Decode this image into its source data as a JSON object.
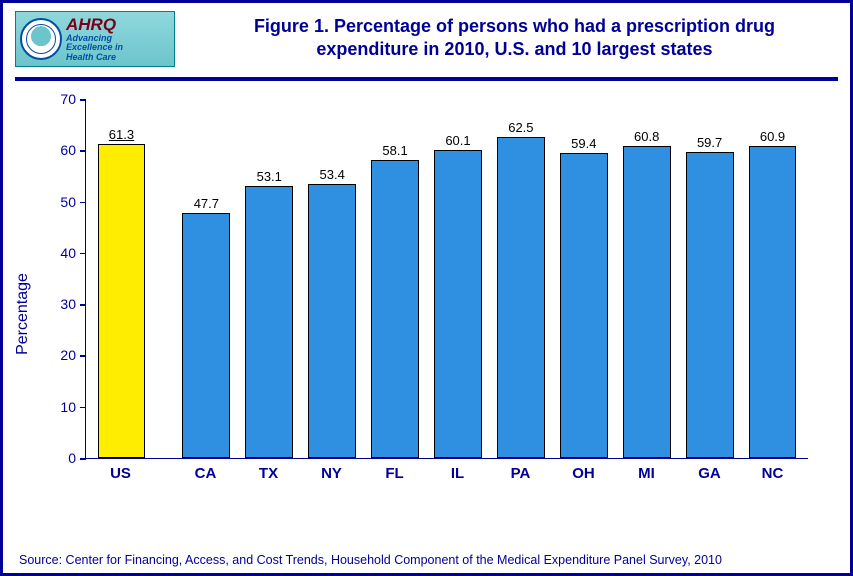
{
  "logo": {
    "brand": "AHRQ",
    "tagline1": "Advancing",
    "tagline2": "Excellence in",
    "tagline3": "Health Care"
  },
  "title_line1": "Figure 1. Percentage of persons who had a prescription drug",
  "title_line2": "expenditure in 2010, U.S. and 10 largest states",
  "chart": {
    "type": "bar",
    "y_axis_label": "Percentage",
    "ylim": [
      0,
      70
    ],
    "ytick_step": 10,
    "yticks": [
      0,
      10,
      20,
      30,
      40,
      50,
      60,
      70
    ],
    "categories": [
      "US",
      "CA",
      "TX",
      "NY",
      "FL",
      "IL",
      "PA",
      "OH",
      "MI",
      "GA",
      "NC"
    ],
    "values": [
      61.3,
      47.7,
      53.1,
      53.4,
      58.1,
      60.1,
      62.5,
      59.4,
      60.8,
      59.7,
      60.9
    ],
    "bar_colors": [
      "#ffed00",
      "#2f8fe0",
      "#2f8fe0",
      "#2f8fe0",
      "#2f8fe0",
      "#2f8fe0",
      "#2f8fe0",
      "#2f8fe0",
      "#2f8fe0",
      "#2f8fe0",
      "#2f8fe0"
    ],
    "bar_border_color": "#000000",
    "gap_after_index": 0,
    "first_value_underlined": true,
    "axis_color": "#000099",
    "text_color": "#000099",
    "value_label_fontsize": 13,
    "category_label_fontsize": 15,
    "category_label_fontweight": "bold",
    "title_fontsize": 18,
    "title_color": "#000099",
    "background_color": "#ffffff",
    "bar_width_ratio": 0.76
  },
  "source": "Source: Center for Financing, Access, and Cost Trends, Household Component of the Medical Expenditure Panel Survey, 2010"
}
